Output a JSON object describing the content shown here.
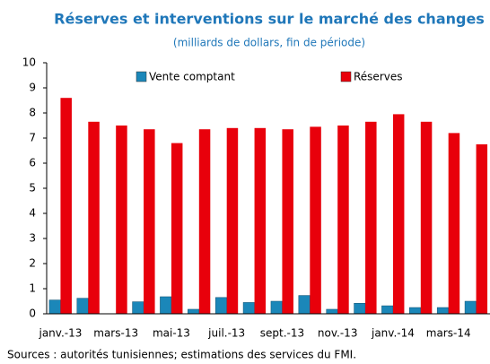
{
  "chart_data": {
    "type": "bar",
    "title": "Réserves et interventions sur le marché des changes",
    "subtitle": "(milliards de dollars, fin de période)",
    "source": "Sources : autorités tunisiennes; estimations des services du FMI.",
    "categories": [
      "janv.-13",
      null,
      "mars-13",
      null,
      "mai-13",
      null,
      "juil.-13",
      null,
      "sept.-13",
      null,
      "nov.-13",
      null,
      "janv.-14",
      null,
      "mars-14",
      null
    ],
    "series": [
      {
        "name": "Vente comptant",
        "color": "#1b87b9",
        "values": [
          0.55,
          0.62,
          0,
          0.48,
          0.68,
          0.18,
          0.65,
          0.45,
          0.5,
          0.73,
          0.18,
          0.42,
          0.32,
          0.25,
          0.25,
          0.5
        ]
      },
      {
        "name": "Réserves",
        "color": "#e8000b",
        "values": [
          8.6,
          7.65,
          7.5,
          7.35,
          6.8,
          7.35,
          7.4,
          7.4,
          7.35,
          7.45,
          7.5,
          7.65,
          7.95,
          7.65,
          7.2,
          6.75
        ]
      }
    ],
    "ylim": [
      0,
      10
    ],
    "yticks": [
      0,
      1,
      2,
      3,
      4,
      5,
      6,
      7,
      8,
      9,
      10
    ],
    "grid": false
  }
}
